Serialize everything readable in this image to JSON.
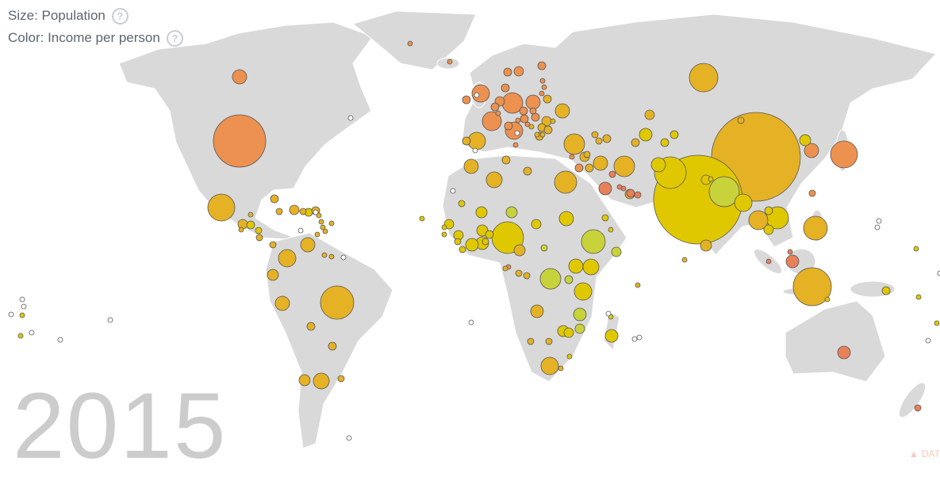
{
  "legend": {
    "size_label": "Size: Population",
    "color_label": "Color: Income per person",
    "help_glyph": "?"
  },
  "year": "2015",
  "warning": {
    "icon": "warning-triangle-icon",
    "text": "DAT"
  },
  "colors": {
    "land": "#d9d9d9",
    "income_low": "#c8d23a",
    "income_lower_mid": "#e0c800",
    "income_mid": "#e5b125",
    "income_high": "#ec9150",
    "income_highest": "#e8805a",
    "no_data": "#ffffff"
  }
}
